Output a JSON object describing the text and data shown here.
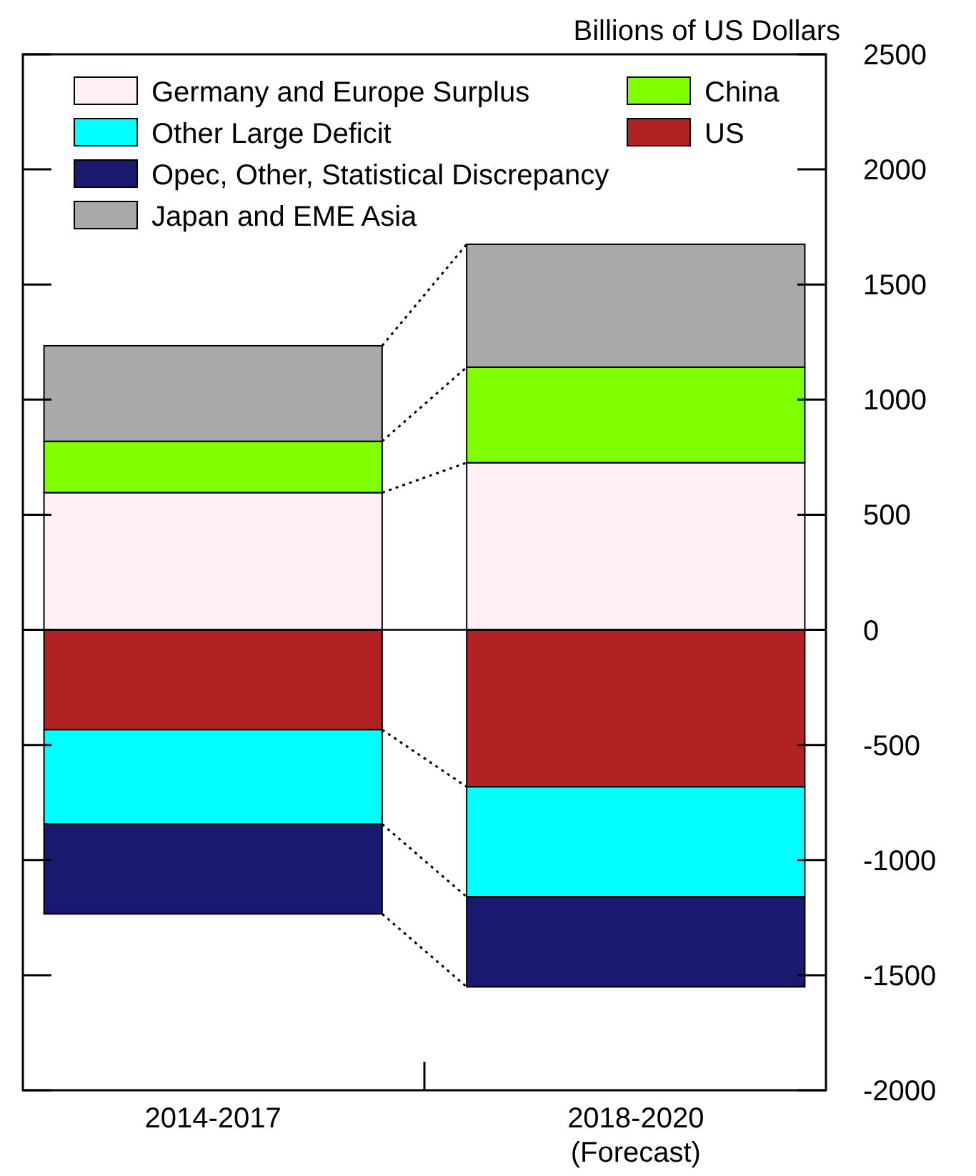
{
  "chart_data": {
    "type": "bar",
    "stacked": true,
    "ylabel": "Billions of US Dollars",
    "categories": [
      "2014-2017",
      "2018-2020\n(Forecast)"
    ],
    "series": [
      {
        "name": "Germany and Europe Surplus",
        "color": "#fff0f5",
        "values": [
          596,
          726
        ]
      },
      {
        "name": "China",
        "color": "#80ff00",
        "values": [
          223,
          415
        ]
      },
      {
        "name": "Japan and EME Asia",
        "color": "#a9a9a9",
        "values": [
          415,
          534
        ]
      },
      {
        "name": "US",
        "color": "#b22222",
        "values": [
          -434,
          -682
        ]
      },
      {
        "name": "Other Large Deficit",
        "color": "#00ffff",
        "values": [
          -410,
          -478
        ]
      },
      {
        "name": "Opec, Other, Statistical Discrepancy",
        "color": "#191970",
        "values": [
          -390,
          -391
        ]
      }
    ],
    "ylim": [
      -2000,
      2500
    ],
    "yticks": [
      -2000,
      -1500,
      -1000,
      -500,
      0,
      500,
      1000,
      1500,
      2000,
      2500
    ],
    "ref_lines": [
      {
        "axis": "y",
        "value": 0
      }
    ],
    "legend": "top left"
  }
}
